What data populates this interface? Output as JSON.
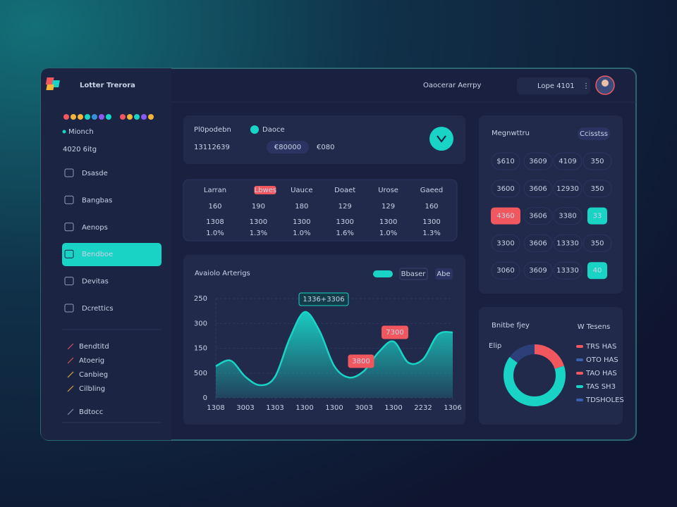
{
  "app": {
    "brand": "Lotter Trerora",
    "header_title": "Oaocerar Aerrpy",
    "search": "Lope 4101"
  },
  "sidebar": {
    "label": "Mionch",
    "value": "4020 6itg",
    "nav": [
      "Dsasde",
      "Bangbas",
      "Aenops",
      "Bendboe",
      "Devitas",
      "Dcrettics"
    ],
    "links": [
      "Bendtitd",
      "Atoerig",
      "Canbieg",
      "Cilbling",
      "Bdtocc"
    ]
  },
  "summary": {
    "label": "Pl0podebn",
    "status": "Daoce",
    "amount": "13112639",
    "pill": "€80000",
    "extra": "€080"
  },
  "stats": [
    {
      "label": "Larran",
      "value": "160",
      "sub": "1308",
      "change": "1.0%"
    },
    {
      "label": "Lbwes",
      "value": "190",
      "sub": "1300",
      "change": "1.3%"
    },
    {
      "label": "Uauce",
      "value": "180",
      "sub": "1300",
      "change": "1.0%"
    },
    {
      "label": "Doaet",
      "value": "129",
      "sub": "1300",
      "change": "1.6%"
    },
    {
      "label": "Urose",
      "value": "129",
      "sub": "1300",
      "change": "1.0%"
    },
    {
      "label": "Gaeed",
      "value": "160",
      "sub": "1300",
      "change": "1.3%"
    }
  ],
  "table": {
    "title": "Megnwttru",
    "button": "Ccisstss",
    "rows": [
      [
        "$610",
        "3609",
        "4109",
        "350"
      ],
      [
        "3600",
        "3606",
        "12930",
        "350"
      ],
      [
        "4360",
        "3606",
        "3380",
        "33"
      ],
      [
        "3300",
        "3606",
        "13330",
        "350"
      ],
      [
        "3060",
        "3609",
        "13330",
        "40"
      ]
    ]
  },
  "donut_legend": [
    "TRS HAS",
    "OTO HAS",
    "TAO HAS",
    "TAS SH3",
    "TDSHOLES"
  ],
  "donut_note": "Elip",
  "donut_button": "W Tesens",
  "chart_legend": [
    "Bbaser",
    "Abe"
  ],
  "chart_data": [
    {
      "type": "area",
      "title": "Avaiolo Arterigs",
      "x": [
        0,
        1,
        2,
        3,
        4,
        5,
        6,
        7,
        8,
        9,
        10,
        11,
        12,
        13,
        14,
        15,
        16
      ],
      "series": [
        {
          "color": "#19d3c5",
          "values": [
            128,
            150,
            85,
            51,
            85,
            241,
            346,
            270,
            128,
            82,
            108,
            184,
            227,
            142,
            156,
            255,
            264
          ]
        }
      ],
      "xlim": [
        0,
        16
      ],
      "xticks": [
        {
          "value": 0,
          "label": "1308"
        },
        {
          "value": 2,
          "label": "3003"
        },
        {
          "value": 4,
          "label": "1303"
        },
        {
          "value": 6,
          "label": "1300"
        },
        {
          "value": 8,
          "label": "1300"
        },
        {
          "value": 10,
          "label": "3003"
        },
        {
          "value": 12,
          "label": "1300"
        },
        {
          "value": 14,
          "label": "2232"
        },
        {
          "value": 16,
          "label": "1306"
        }
      ],
      "ylim": [
        0,
        400
      ],
      "yticks": [
        0,
        {
          "value": 100,
          "label": "500"
        },
        {
          "value": 200,
          "label": "150"
        },
        {
          "value": 300,
          "label": "300"
        },
        {
          "value": 400,
          "label": "250"
        }
      ],
      "grid": true,
      "annotations": [
        "1336+3306",
        "7300",
        "3800"
      ]
    },
    {
      "type": "pie",
      "title": "Bnitbe fjey",
      "categories": [
        null,
        null,
        null
      ],
      "values": [
        20,
        65,
        15
      ],
      "colors": [
        "#f0575f",
        "#19d3c5",
        "#2d3f78"
      ]
    }
  ]
}
